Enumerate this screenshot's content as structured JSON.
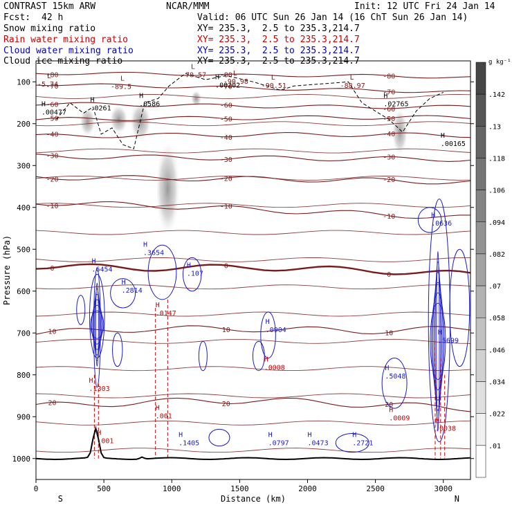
{
  "header": {
    "model": "CONTRAST 15km ARW",
    "center": "NCAR/MMM",
    "init": "Init: 12 UTC Fri 24 Jan 14",
    "fcst_label": "Fcst:",
    "fcst_value": "42 h",
    "valid": "Valid: 06 UTC Sun 26 Jan 14 (16 ChT Sun 26 Jan 14)"
  },
  "fields": [
    {
      "name": "Snow mixing ratio",
      "xy": "XY= 235.3,  2.5 to 235.3,214.7",
      "color": "#000000"
    },
    {
      "name": "Rain water mixing ratio",
      "xy": "XY= 235.3,  2.5 to 235.3,214.7",
      "color": "#cc0000"
    },
    {
      "name": "Cloud water mixing ratio",
      "xy": "XY= 235.3,  2.5 to 235.3,214.7",
      "color": "#0000cc"
    },
    {
      "name": "Cloud ice mixing ratio",
      "xy": "XY= 235.3,  2.5 to 235.3,214.7",
      "color": "#000000"
    }
  ],
  "chart_data": {
    "type": "line",
    "xlabel": "Distance (km)",
    "ylabel": "Pressure (hPa)",
    "xlim": [
      0,
      3200
    ],
    "ylim": [
      1050,
      50
    ],
    "x_ticks": [
      0,
      500,
      1000,
      1500,
      2000,
      2500,
      3000
    ],
    "y_ticks": [
      100,
      200,
      300,
      400,
      500,
      600,
      700,
      800,
      900,
      1000
    ],
    "x_end_labels": {
      "left": "S",
      "right": "N"
    },
    "colorbar": {
      "unit": "g kg⁻¹",
      "levels": [
        ".01",
        ".022",
        ".034",
        ".046",
        ".058",
        ".07",
        ".082",
        ".094",
        ".106",
        ".118",
        ".13",
        ".142"
      ]
    },
    "temperature_contours": [
      {
        "label": "-80",
        "p": [
          80,
          80,
          85,
          85,
          90
        ]
      },
      {
        "label": "-70",
        "p": [
          105,
          110,
          115,
          120,
          125
        ]
      },
      {
        "label": "-60",
        "p": [
          152,
          155,
          158,
          160,
          160
        ]
      },
      {
        "label": "-50",
        "p": [
          190,
          188,
          186,
          185,
          185
        ]
      },
      {
        "label": "-40",
        "p": [
          230,
          228,
          226,
          226,
          228
        ]
      },
      {
        "label": "-30",
        "p": [
          278,
          280,
          282,
          284,
          285
        ]
      },
      {
        "label": "-20",
        "p": [
          328,
          330,
          332,
          335,
          340
        ]
      },
      {
        "label": "-10",
        "p": [
          388,
          395,
          405,
          415,
          425
        ]
      },
      {
        "label": "0",
        "p": [
          540,
          545,
          543,
          550,
          560
        ]
      },
      {
        "label": "10",
        "p": [
          700,
          690,
          690,
          695,
          690
        ]
      },
      {
        "label": "20",
        "p": [
          875,
          865,
          860,
          870,
          880
        ]
      }
    ],
    "max_labels": [
      {
        "field": "cloud_ice",
        "text": ".00477",
        "x": 40,
        "p": 175
      },
      {
        "field": "cloud_ice",
        "text": ".0261",
        "x": 400,
        "p": 165
      },
      {
        "field": "cloud_ice",
        "text": ".0586",
        "x": 760,
        "p": 155
      },
      {
        "field": "cloud_ice",
        "text": ".00202",
        "x": 1320,
        "p": 110
      },
      {
        "field": "cloud_ice",
        "text": ".02765",
        "x": 2560,
        "p": 155
      },
      {
        "field": "cloud_ice",
        "text": ".00165",
        "x": 2980,
        "p": 250
      },
      {
        "field": "cloud_water",
        "text": ".6454",
        "x": 410,
        "p": 550
      },
      {
        "field": "cloud_water",
        "text": ".2814",
        "x": 630,
        "p": 600
      },
      {
        "field": "cloud_water",
        "text": ".3654",
        "x": 790,
        "p": 510
      },
      {
        "field": "cloud_water",
        "text": ".107",
        "x": 1110,
        "p": 560
      },
      {
        "field": "cloud_water",
        "text": ".0636",
        "x": 2910,
        "p": 440
      },
      {
        "field": "cloud_water",
        "text": ".0904",
        "x": 1690,
        "p": 695
      },
      {
        "field": "cloud_water",
        "text": ".5048",
        "x": 2570,
        "p": 805
      },
      {
        "field": "cloud_water",
        "text": ".1405",
        "x": 1050,
        "p": 965
      },
      {
        "field": "cloud_water",
        "text": ".0797",
        "x": 1710,
        "p": 965
      },
      {
        "field": "cloud_water",
        "text": ".0473",
        "x": 2000,
        "p": 965
      },
      {
        "field": "cloud_water",
        "text": ".2721",
        "x": 2330,
        "p": 965
      },
      {
        "field": "cloud_water",
        "text": ".5699",
        "x": 2960,
        "p": 720
      },
      {
        "field": "rain",
        "text": ".0147",
        "x": 880,
        "p": 655
      },
      {
        "field": "rain",
        "text": ".0008",
        "x": 1680,
        "p": 785
      },
      {
        "field": "rain",
        "text": ".1303",
        "x": 390,
        "p": 835
      },
      {
        "field": "rain",
        "text": ".0009",
        "x": 2600,
        "p": 905
      },
      {
        "field": "rain",
        "text": ".0038",
        "x": 2940,
        "p": 930
      },
      {
        "field": "rain",
        "text": ".001",
        "x": 880,
        "p": 900
      },
      {
        "field": "rain",
        "text": ".001",
        "x": 450,
        "p": 960
      }
    ],
    "low_labels": [
      {
        "text": "-70.57",
        "x": 1070,
        "p": 72
      },
      {
        "text": "-89.5",
        "x": 550,
        "p": 100
      },
      {
        "text": "-90.98",
        "x": 1380,
        "p": 88
      },
      {
        "text": "-90.51",
        "x": 1660,
        "p": 98
      },
      {
        "text": "-88.97",
        "x": 2240,
        "p": 98
      },
      {
        "text": "-5.74",
        "x": 10,
        "p": 95
      }
    ]
  }
}
